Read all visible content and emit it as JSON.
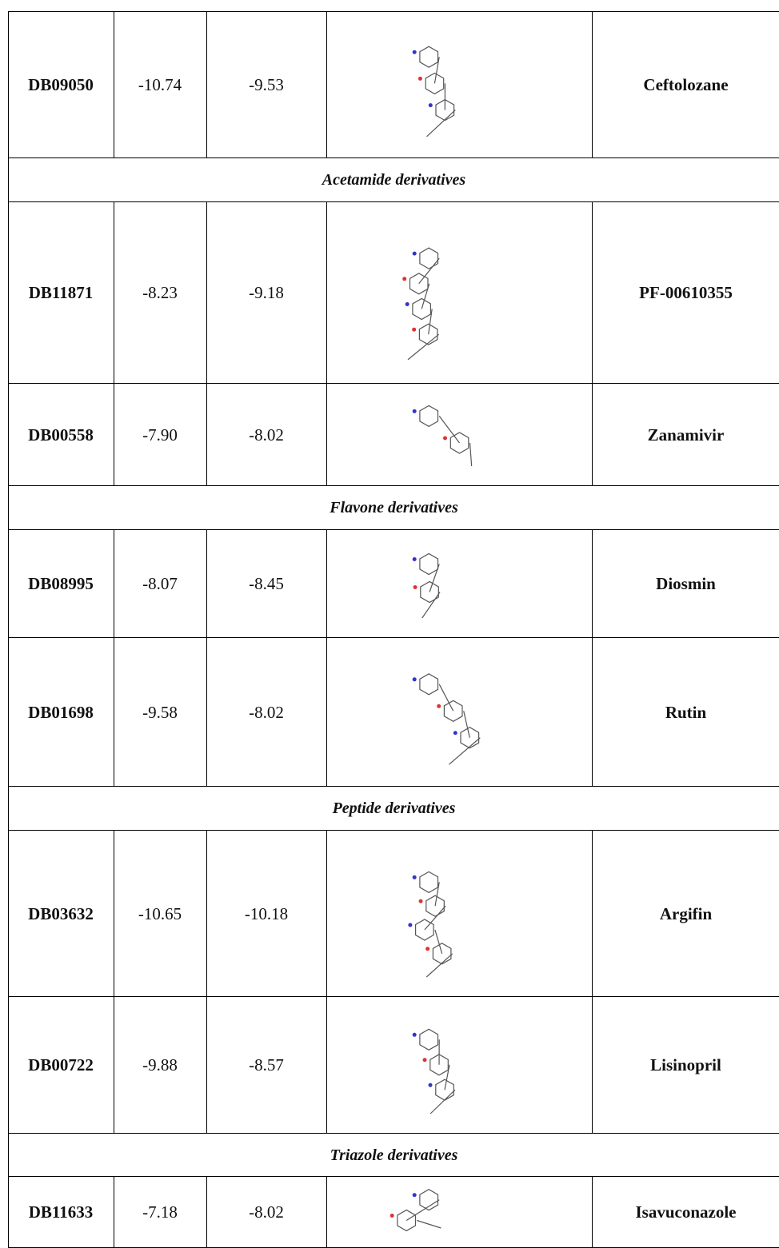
{
  "table": {
    "rows": [
      {
        "id": "DB09050",
        "score_1": "-10.74",
        "score_2": "-9.53",
        "name": "Ceftolozane"
      },
      {
        "group": "Acetamide derivatives"
      },
      {
        "id": "DB11871",
        "score_1": "-8.23",
        "score_2": "-9.18",
        "name": "PF-00610355"
      },
      {
        "id": "DB00558",
        "score_1": "-7.90",
        "score_2": "-8.02",
        "name": "Zanamivir"
      },
      {
        "group": "Flavone derivatives"
      },
      {
        "id": "DB08995",
        "score_1": "-8.07",
        "score_2": "-8.45",
        "name": "Diosmin"
      },
      {
        "id": "DB01698",
        "score_1": "-9.58",
        "score_2": "-8.02",
        "name": "Rutin"
      },
      {
        "group": "Peptide derivatives"
      },
      {
        "id": "DB03632",
        "score_1": "-10.65",
        "score_2": "-10.18",
        "name": "Argifin"
      },
      {
        "id": "DB00722",
        "score_1": "-9.88",
        "score_2": "-8.57",
        "name": "Lisinopril"
      },
      {
        "group": "Triazole derivatives"
      },
      {
        "id": "DB11633",
        "score_1": "-7.18",
        "score_2": "-8.02",
        "name": "Isavuconazole"
      }
    ]
  }
}
